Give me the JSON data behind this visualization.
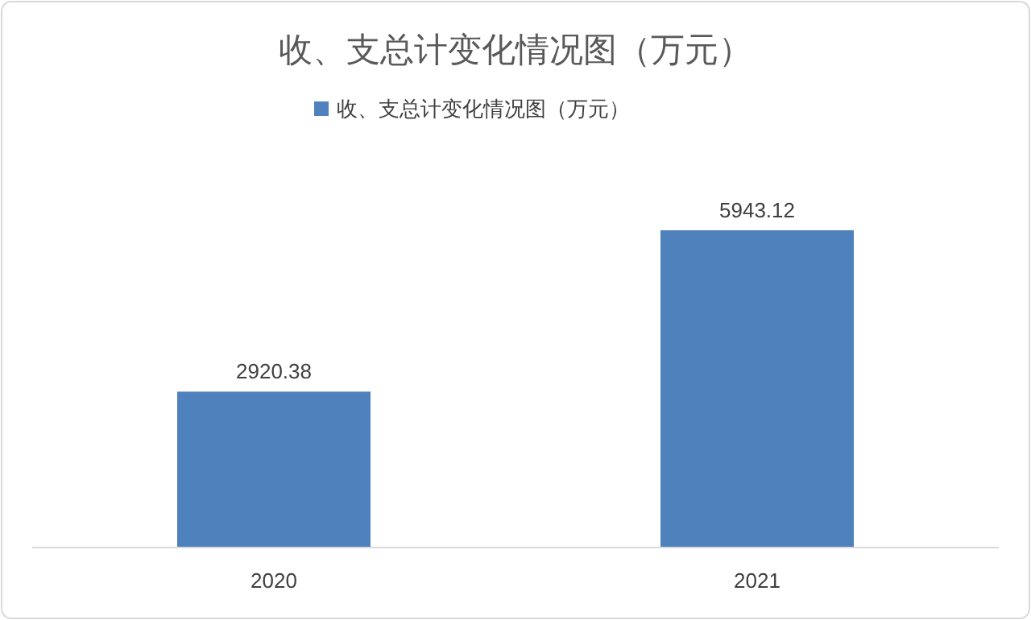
{
  "chart_data": {
    "type": "bar",
    "title": "收、支总计变化情况图（万元）",
    "categories": [
      "2020",
      "2021"
    ],
    "series": [
      {
        "name": "收、支总计变化情况图（万元）",
        "color": "#4f81bd",
        "values": [
          2920.38,
          5943.12
        ]
      }
    ],
    "data_labels": true,
    "legend": "top"
  }
}
